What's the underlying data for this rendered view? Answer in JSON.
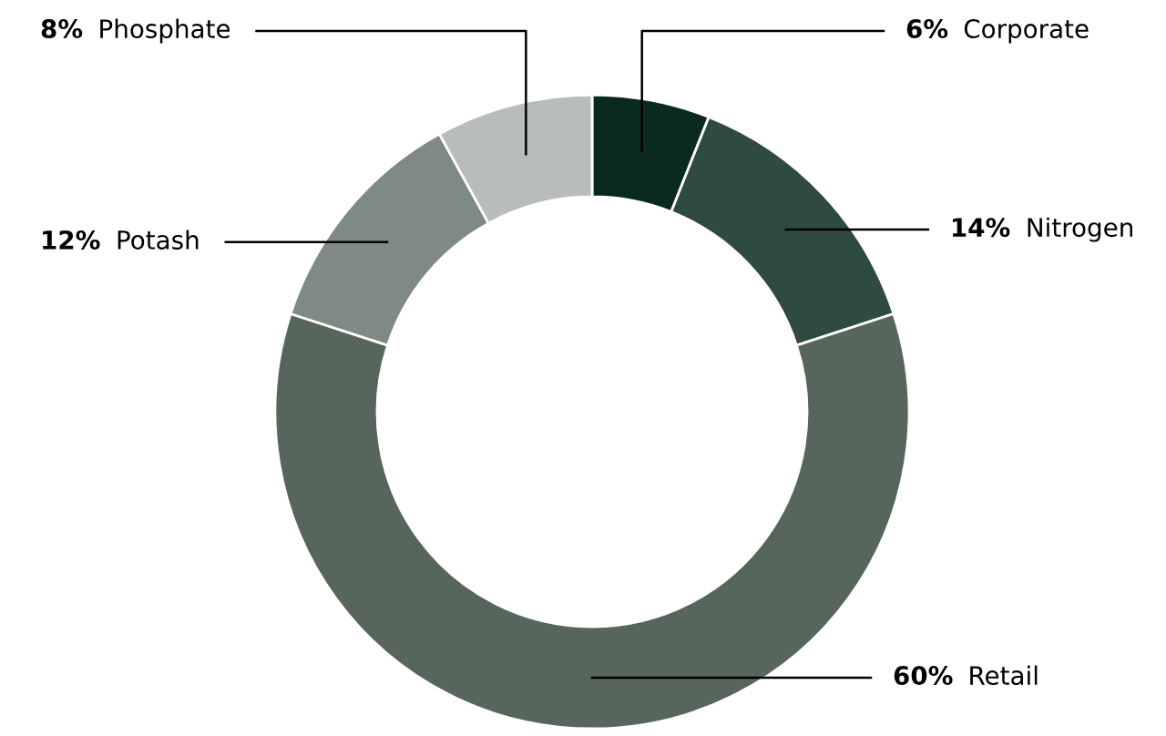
{
  "chart_data": {
    "type": "donut",
    "categories": [
      "Corporate",
      "Nitrogen",
      "Retail",
      "Potash",
      "Phosphate"
    ],
    "values": [
      6,
      14,
      60,
      12,
      8
    ],
    "value_labels": [
      "6%",
      "14%",
      "60%",
      "12%",
      "8%"
    ],
    "colors": [
      "#0b2a1f",
      "#2f4a3e",
      "#56665c",
      "#808a84",
      "#b8bdb9"
    ]
  }
}
